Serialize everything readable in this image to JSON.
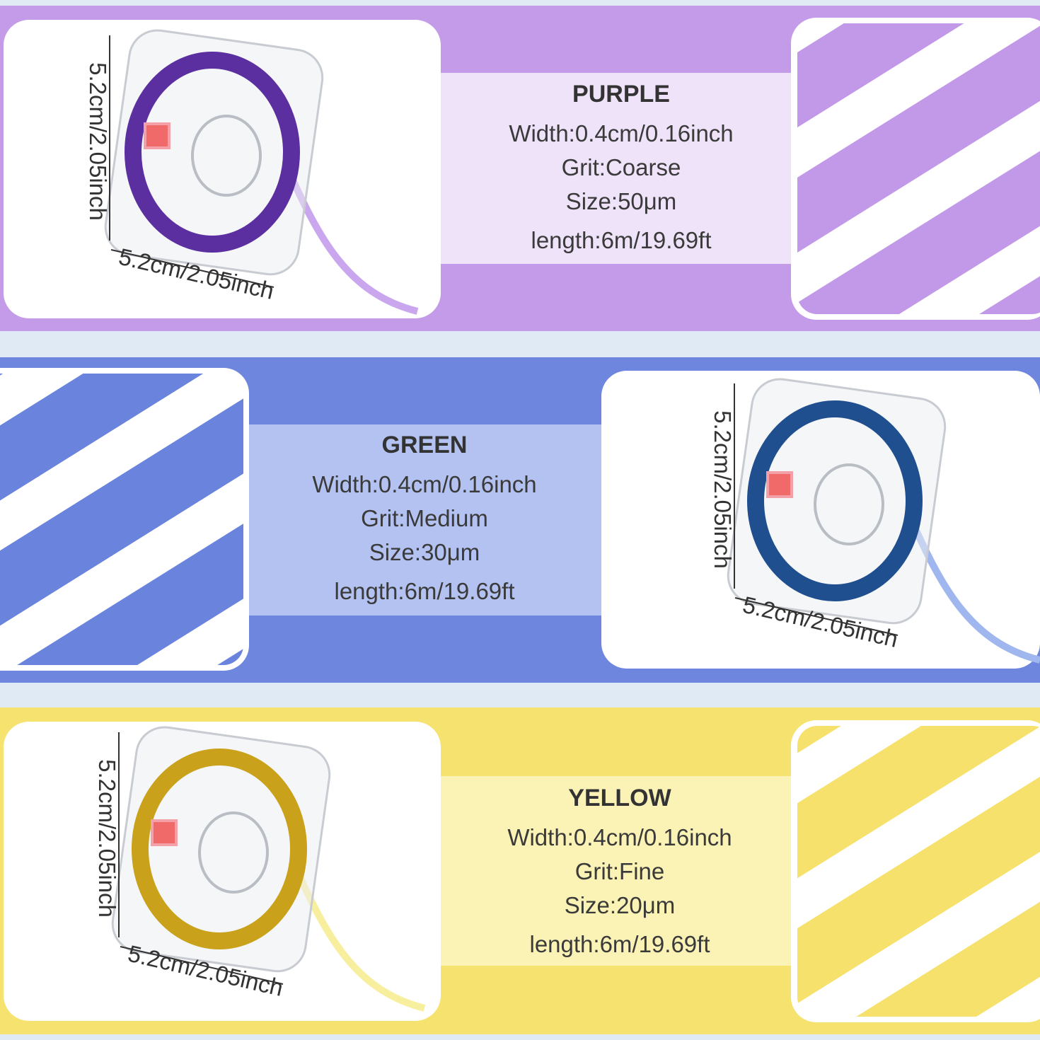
{
  "panels": [
    {
      "title": "PURPLE",
      "specs": [
        "Width:0.4cm/0.16inch",
        "Grit:Coarse",
        "Size:50μm",
        "length:6m/19.69ft"
      ],
      "dimension_vertical": "5.2cm/2.05inch",
      "dimension_horizontal": "5.2cm/2.05inch"
    },
    {
      "title": "GREEN",
      "specs": [
        "Width:0.4cm/0.16inch",
        "Grit:Medium",
        "Size:30μm",
        "length:6m/19.69ft"
      ],
      "dimension_vertical": "5.2cm/2.05inch",
      "dimension_horizontal": "5.2cm/2.05inch"
    },
    {
      "title": "YELLOW",
      "specs": [
        "Width:0.4cm/0.16inch",
        "Grit:Fine",
        "Size:20μm",
        "length:6m/19.69ft"
      ],
      "dimension_vertical": "5.2cm/2.05inch",
      "dimension_horizontal": "5.2cm/2.05inch"
    }
  ]
}
